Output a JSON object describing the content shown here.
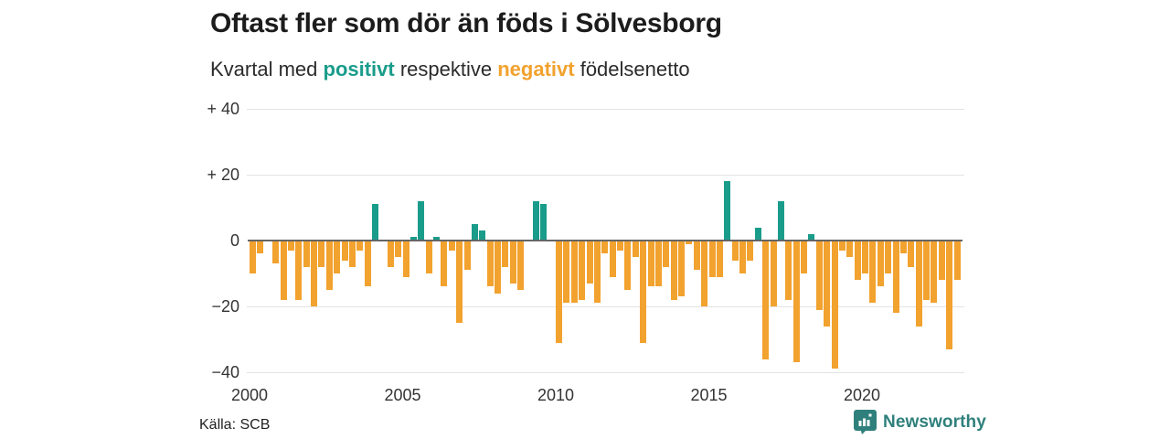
{
  "header": {
    "title": "Oftast fler som dör än föds i Sölvesborg",
    "subtitle_lead": "Kvartal med ",
    "subtitle_positive_word": "positivt",
    "subtitle_middle": " respektive ",
    "subtitle_negative_word": "negativt",
    "subtitle_tail": " födelsenetto"
  },
  "chart_data": {
    "type": "bar",
    "title": "Oftast fler som dör än föds i Sölvesborg",
    "subtitle": "Kvartal med positivt respektive negativt födelsenetto",
    "frequency": "quarterly",
    "x_start": "2000 Q1",
    "x_end": "2023 Q1",
    "values": [
      -10,
      -4,
      0,
      -7,
      -18,
      -3,
      -18,
      -8,
      -20,
      -8,
      -15,
      -10,
      -6,
      -8,
      -3,
      -14,
      11,
      0,
      -8,
      -5,
      -11,
      1,
      12,
      -10,
      1,
      -14,
      -3,
      -25,
      -9,
      5,
      3,
      -14,
      -16,
      -8,
      -13,
      -15,
      0,
      12,
      11,
      0,
      -31,
      -19,
      -19,
      -18,
      -13,
      -19,
      -4,
      -11,
      -3,
      -15,
      -5,
      -31,
      -14,
      -14,
      -8,
      -18,
      -17,
      -1,
      -9,
      -20,
      -11,
      -11,
      18,
      -6,
      -10,
      -6,
      4,
      -36,
      -20,
      12,
      -18,
      -37,
      -10,
      2,
      -21,
      -26,
      -39,
      -3,
      -5,
      -12,
      -10,
      -19,
      -14,
      -10,
      -22,
      -4,
      -8,
      -26,
      -18,
      -19,
      -12,
      -33,
      -12
    ],
    "start_year": 2000,
    "ylim": [
      -40,
      40
    ],
    "yticks": [
      40,
      20,
      0,
      -20,
      -40
    ],
    "ytick_labels": [
      "+ 40",
      "+ 20",
      "0",
      "−20",
      "−40"
    ],
    "xticks": [
      2000,
      2005,
      2010,
      2015,
      2020
    ],
    "positive_color": "#1a9c8b",
    "negative_color": "#f2a22e",
    "grid": true,
    "legend_position": "none"
  },
  "footer": {
    "source": "Källa: SCB",
    "brand": "Newsworthy",
    "brand_color": "#2f807c"
  }
}
